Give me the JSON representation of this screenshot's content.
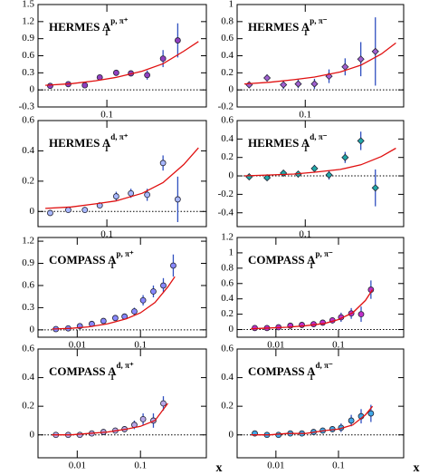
{
  "chart_data": [
    {
      "type": "scatter",
      "title": "HERMES A",
      "title_sub": "1",
      "title_sup": "p, π⁺",
      "log_x": true,
      "xlim": [
        0.026,
        0.7
      ],
      "xticks": [
        0.1
      ],
      "ylim": [
        -0.3,
        1.5
      ],
      "yticks": [
        -0.3,
        0,
        0.3,
        0.6,
        0.9,
        1.2,
        1.5
      ],
      "series": [
        {
          "marker": "circle",
          "color": "#9040c0",
          "error_color": "#3050c0",
          "x": [
            0.033,
            0.047,
            0.065,
            0.087,
            0.12,
            0.16,
            0.22,
            0.3,
            0.4
          ],
          "values": [
            0.07,
            0.1,
            0.08,
            0.22,
            0.3,
            0.29,
            0.26,
            0.55,
            0.87
          ],
          "errors": [
            0.02,
            0.02,
            0.03,
            0.03,
            0.04,
            0.05,
            0.08,
            0.15,
            0.3
          ]
        },
        {
          "marker": "line",
          "color": "#e01010",
          "x": [
            0.03,
            0.05,
            0.08,
            0.12,
            0.2,
            0.3,
            0.45,
            0.6
          ],
          "values": [
            0.08,
            0.11,
            0.16,
            0.22,
            0.33,
            0.46,
            0.68,
            0.85
          ]
        }
      ]
    },
    {
      "type": "scatter",
      "title": "HERMES A",
      "title_sub": "1",
      "title_sup": "p, π⁻",
      "log_x": true,
      "xlim": [
        0.026,
        0.7
      ],
      "xticks": [
        0.1
      ],
      "ylim": [
        -0.2,
        1
      ],
      "yticks": [
        -0.2,
        0,
        0.2,
        0.4,
        0.6,
        0.8,
        1
      ],
      "series": [
        {
          "marker": "diamond",
          "color": "#a060d0",
          "error_color": "#3050c0",
          "x": [
            0.033,
            0.047,
            0.065,
            0.087,
            0.12,
            0.16,
            0.22,
            0.3,
            0.4
          ],
          "values": [
            0.06,
            0.14,
            0.06,
            0.07,
            0.07,
            0.16,
            0.27,
            0.36,
            0.45
          ],
          "errors": [
            0.03,
            0.04,
            0.05,
            0.05,
            0.06,
            0.08,
            0.1,
            0.2,
            0.4
          ]
        },
        {
          "marker": "line",
          "color": "#e01010",
          "x": [
            0.03,
            0.05,
            0.08,
            0.12,
            0.2,
            0.3,
            0.45,
            0.6
          ],
          "values": [
            0.07,
            0.09,
            0.12,
            0.15,
            0.21,
            0.29,
            0.42,
            0.55
          ]
        }
      ]
    },
    {
      "type": "scatter",
      "title": "HERMES A",
      "title_sub": "1",
      "title_sup": "d, π⁺",
      "log_x": true,
      "xlim": [
        0.026,
        0.7
      ],
      "xticks": [
        0.1
      ],
      "ylim": [
        -0.1,
        0.6
      ],
      "yticks": [
        0,
        0.2,
        0.4,
        0.6
      ],
      "series": [
        {
          "marker": "circle",
          "color": "#a8b8ff",
          "error_color": "#3050c0",
          "x": [
            0.033,
            0.047,
            0.065,
            0.087,
            0.12,
            0.16,
            0.22,
            0.3,
            0.4
          ],
          "values": [
            -0.01,
            0.01,
            0.01,
            0.04,
            0.1,
            0.12,
            0.11,
            0.32,
            0.08
          ],
          "errors": [
            0.01,
            0.01,
            0.02,
            0.02,
            0.03,
            0.03,
            0.04,
            0.05,
            0.15
          ]
        },
        {
          "marker": "line",
          "color": "#e01010",
          "x": [
            0.03,
            0.05,
            0.08,
            0.12,
            0.2,
            0.3,
            0.45,
            0.6
          ],
          "values": [
            0.02,
            0.03,
            0.05,
            0.07,
            0.12,
            0.19,
            0.31,
            0.42
          ]
        }
      ]
    },
    {
      "type": "scatter",
      "title": "HERMES A",
      "title_sub": "1",
      "title_sup": "d, π⁻",
      "log_x": true,
      "xlim": [
        0.026,
        0.7
      ],
      "xticks": [
        0.1
      ],
      "ylim": [
        -0.55,
        0.6
      ],
      "yticks": [
        -0.4,
        -0.2,
        0,
        0.2,
        0.4,
        0.6
      ],
      "series": [
        {
          "marker": "diamond",
          "color": "#20a8a8",
          "error_color": "#3050c0",
          "x": [
            0.033,
            0.047,
            0.065,
            0.087,
            0.12,
            0.16,
            0.22,
            0.3,
            0.4
          ],
          "values": [
            -0.01,
            -0.02,
            0.03,
            0.02,
            0.08,
            0.01,
            0.2,
            0.38,
            -0.13
          ],
          "errors": [
            0.02,
            0.02,
            0.03,
            0.03,
            0.04,
            0.05,
            0.06,
            0.1,
            0.2
          ]
        },
        {
          "marker": "line",
          "color": "#e01010",
          "x": [
            0.03,
            0.05,
            0.08,
            0.12,
            0.2,
            0.3,
            0.45,
            0.6
          ],
          "values": [
            0,
            0.01,
            0.02,
            0.04,
            0.07,
            0.12,
            0.21,
            0.3
          ]
        }
      ]
    },
    {
      "type": "scatter",
      "title": "COMPASS A",
      "title_sub": "1",
      "title_sup": "p, π⁺",
      "log_x": true,
      "xlim": [
        0.0024,
        1.1
      ],
      "xticks": [
        0.01,
        0.1
      ],
      "ylim": [
        -0.1,
        1.25
      ],
      "yticks": [
        0,
        0.3,
        0.6,
        0.9,
        1.2
      ],
      "series": [
        {
          "marker": "circle",
          "color": "#8888ff",
          "error_color": "#3050c0",
          "x": [
            0.0046,
            0.0072,
            0.011,
            0.017,
            0.026,
            0.04,
            0.056,
            0.08,
            0.11,
            0.16,
            0.23,
            0.33
          ],
          "values": [
            0.01,
            0.02,
            0.05,
            0.08,
            0.12,
            0.16,
            0.18,
            0.25,
            0.4,
            0.52,
            0.6,
            0.87
          ],
          "errors": [
            0.01,
            0.01,
            0.02,
            0.02,
            0.03,
            0.03,
            0.04,
            0.05,
            0.07,
            0.08,
            0.1,
            0.15
          ]
        },
        {
          "marker": "line",
          "color": "#e01010",
          "x": [
            0.004,
            0.008,
            0.015,
            0.03,
            0.06,
            0.1,
            0.17,
            0.27,
            0.35
          ],
          "values": [
            0.01,
            0.02,
            0.04,
            0.08,
            0.15,
            0.23,
            0.37,
            0.58,
            0.72
          ]
        }
      ]
    },
    {
      "type": "scatter",
      "title": "COMPASS A",
      "title_sub": "1",
      "title_sup": "p, π⁻",
      "log_x": true,
      "xlim": [
        0.0024,
        1.1
      ],
      "xticks": [
        0.01,
        0.1
      ],
      "ylim": [
        -0.1,
        1.2
      ],
      "yticks": [
        0,
        0.2,
        0.4,
        0.6,
        0.8,
        1,
        1.2
      ],
      "series": [
        {
          "marker": "circle",
          "color": "#c030c8",
          "error_color": "#3050c0",
          "x": [
            0.0046,
            0.0072,
            0.011,
            0.017,
            0.026,
            0.04,
            0.056,
            0.08,
            0.11,
            0.16,
            0.23,
            0.33
          ],
          "values": [
            0.02,
            0.02,
            0.03,
            0.05,
            0.06,
            0.07,
            0.09,
            0.12,
            0.16,
            0.21,
            0.2,
            0.52
          ],
          "errors": [
            0.01,
            0.01,
            0.02,
            0.02,
            0.02,
            0.03,
            0.03,
            0.04,
            0.06,
            0.07,
            0.1,
            0.12
          ]
        },
        {
          "marker": "line",
          "color": "#e01010",
          "x": [
            0.004,
            0.008,
            0.015,
            0.03,
            0.06,
            0.1,
            0.17,
            0.27,
            0.35
          ],
          "values": [
            0.01,
            0.02,
            0.03,
            0.05,
            0.08,
            0.13,
            0.22,
            0.38,
            0.52
          ]
        }
      ]
    },
    {
      "type": "scatter",
      "title": "COMPASS A",
      "title_sub": "1",
      "title_sup": "d, π⁺",
      "log_x": true,
      "xlabel": "x",
      "xlim": [
        0.0024,
        1.1
      ],
      "xticks": [
        0.01,
        0.1
      ],
      "ylim": [
        -0.16,
        0.6
      ],
      "yticks": [
        0,
        0.2,
        0.4,
        0.6
      ],
      "series": [
        {
          "marker": "circle",
          "color": "#b8a8e8",
          "error_color": "#3050c0",
          "x": [
            0.0046,
            0.0072,
            0.011,
            0.017,
            0.026,
            0.04,
            0.056,
            0.08,
            0.11,
            0.16,
            0.23
          ],
          "values": [
            0,
            0,
            0,
            0.01,
            0.02,
            0.03,
            0.04,
            0.07,
            0.11,
            0.1,
            0.22
          ],
          "errors": [
            0.01,
            0.01,
            0.01,
            0.01,
            0.02,
            0.02,
            0.02,
            0.03,
            0.04,
            0.05,
            0.05
          ]
        },
        {
          "marker": "line",
          "color": "#e01010",
          "x": [
            0.004,
            0.008,
            0.015,
            0.03,
            0.06,
            0.1,
            0.17,
            0.27
          ],
          "values": [
            0,
            0,
            0.01,
            0.02,
            0.04,
            0.06,
            0.1,
            0.22
          ]
        }
      ]
    },
    {
      "type": "scatter",
      "title": "COMPASS A",
      "title_sub": "1",
      "title_sup": "d, π⁻",
      "log_x": true,
      "xlabel": "x",
      "xlim": [
        0.0024,
        1.1
      ],
      "xticks": [
        0.01,
        0.1
      ],
      "ylim": [
        -0.16,
        0.6
      ],
      "yticks": [
        0,
        0.2,
        0.4,
        0.6
      ],
      "series": [
        {
          "marker": "circle",
          "color": "#40a8e8",
          "error_color": "#3050c0",
          "x": [
            0.0046,
            0.0072,
            0.011,
            0.017,
            0.026,
            0.04,
            0.056,
            0.08,
            0.11,
            0.16,
            0.23,
            0.33
          ],
          "values": [
            0.01,
            0,
            0,
            0.01,
            0.01,
            0.02,
            0.03,
            0.04,
            0.05,
            0.1,
            0.13,
            0.15
          ],
          "errors": [
            0.01,
            0.01,
            0.01,
            0.01,
            0.01,
            0.02,
            0.02,
            0.02,
            0.03,
            0.04,
            0.05,
            0.06
          ]
        },
        {
          "marker": "line",
          "color": "#e01010",
          "x": [
            0.004,
            0.008,
            0.015,
            0.03,
            0.06,
            0.1,
            0.17,
            0.27,
            0.35
          ],
          "values": [
            0,
            0,
            0.01,
            0.01,
            0.03,
            0.04,
            0.07,
            0.14,
            0.2
          ]
        }
      ]
    }
  ]
}
